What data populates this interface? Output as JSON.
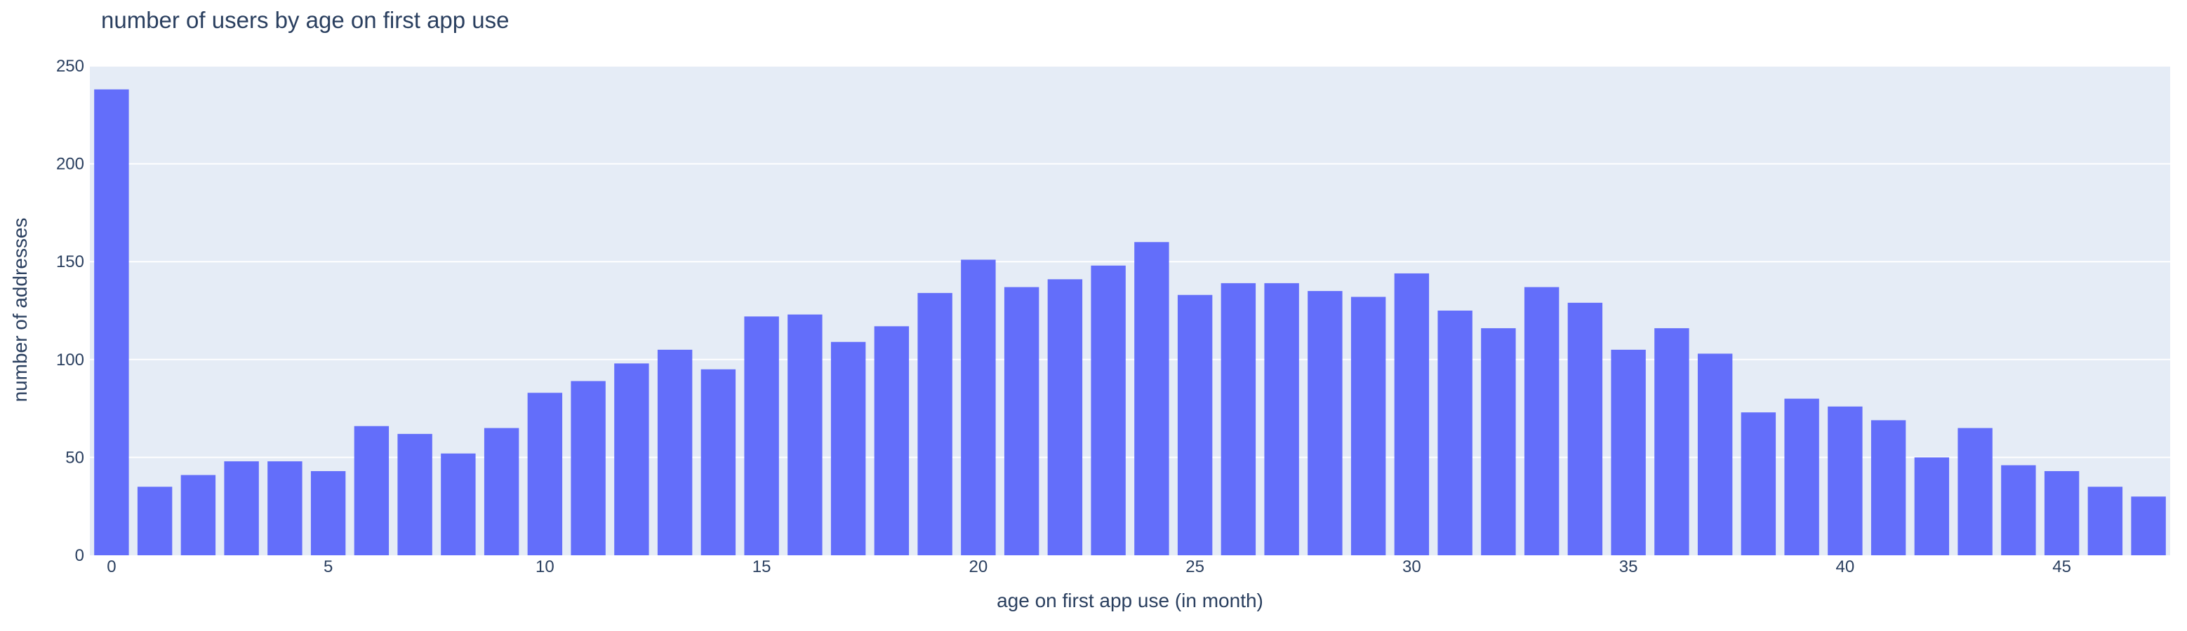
{
  "chart_data": {
    "type": "bar",
    "title": "number of users by age on first app use",
    "xlabel": "age on first app use (in month)",
    "ylabel": "number of addresses",
    "x": [
      0,
      1,
      2,
      3,
      4,
      5,
      6,
      7,
      8,
      9,
      10,
      11,
      12,
      13,
      14,
      15,
      16,
      17,
      18,
      19,
      20,
      21,
      22,
      23,
      24,
      25,
      26,
      27,
      28,
      29,
      30,
      31,
      32,
      33,
      34,
      35,
      36,
      37,
      38,
      39,
      40,
      41,
      42,
      43,
      44,
      45,
      46,
      47
    ],
    "values": [
      238,
      35,
      41,
      48,
      48,
      43,
      66,
      62,
      52,
      65,
      83,
      89,
      98,
      105,
      95,
      122,
      123,
      109,
      117,
      134,
      151,
      137,
      141,
      148,
      160,
      133,
      139,
      139,
      135,
      132,
      144,
      125,
      116,
      137,
      129,
      105,
      116,
      103,
      73,
      80,
      76,
      69,
      50,
      65,
      46,
      43,
      35,
      30
    ],
    "ylim": [
      0,
      250
    ],
    "xlim": [
      -0.5,
      47.5
    ],
    "xticks": [
      0,
      5,
      10,
      15,
      20,
      25,
      30,
      35,
      40,
      45
    ],
    "yticks": [
      0,
      50,
      100,
      150,
      200,
      250
    ],
    "grid": true,
    "colors": {
      "bar": "#636efa",
      "plot_background": "#e5ecf6",
      "gridline": "#ffffff",
      "text": "#2a3f5f"
    }
  }
}
